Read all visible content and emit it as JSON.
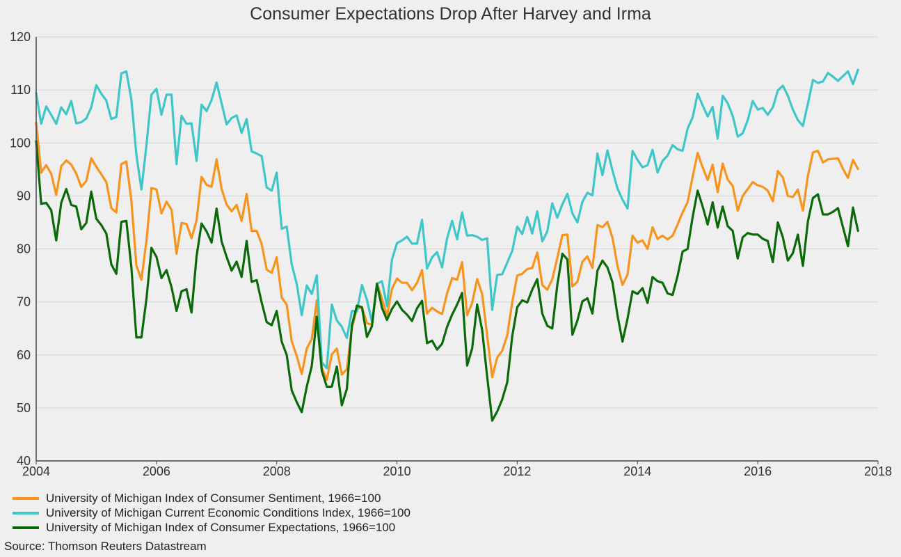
{
  "chart_data": {
    "type": "line",
    "title": "Consumer Expectations Drop After Harvey and Irma",
    "xlabel": "",
    "ylabel": "",
    "xlim": [
      2004,
      2018
    ],
    "ylim": [
      40,
      120
    ],
    "x_ticks": [
      "2004",
      "2006",
      "2008",
      "2010",
      "2012",
      "2014",
      "2016",
      "2018"
    ],
    "y_ticks": [
      "40",
      "50",
      "60",
      "70",
      "80",
      "90",
      "100",
      "110",
      "120"
    ],
    "grid": true,
    "legend_position": "bottom",
    "x_start": "2004-01",
    "x_step_months": 1,
    "series": [
      {
        "name": "University of Michigan Index of Consumer Sentiment, 1966=100",
        "color": "#f7941d",
        "values": [
          103.8,
          94.4,
          95.8,
          94.2,
          90.2,
          95.6,
          96.7,
          95.9,
          94.2,
          91.7,
          92.8,
          97.1,
          95.5,
          94.1,
          92.6,
          87.7,
          86.9,
          96.0,
          96.5,
          89.1,
          76.9,
          74.2,
          81.6,
          91.5,
          91.2,
          86.7,
          88.9,
          87.4,
          79.1,
          84.9,
          84.7,
          82.0,
          85.4,
          93.6,
          92.1,
          91.7,
          96.9,
          91.3,
          88.4,
          87.1,
          88.3,
          85.3,
          90.4,
          83.4,
          83.4,
          80.9,
          76.1,
          75.5,
          78.4,
          70.8,
          69.5,
          62.6,
          59.8,
          56.4,
          61.2,
          63.0,
          70.3,
          57.6,
          55.3,
          60.1,
          61.2,
          56.3,
          57.3,
          65.1,
          68.7,
          69.0,
          66.0,
          65.7,
          73.5,
          70.6,
          67.4,
          72.5,
          74.4,
          73.6,
          73.6,
          72.2,
          73.6,
          76.0,
          67.8,
          68.9,
          68.2,
          67.7,
          71.6,
          74.5,
          74.2,
          77.5,
          67.5,
          69.8,
          74.3,
          71.5,
          63.7,
          55.8,
          59.5,
          60.8,
          63.7,
          69.9,
          75.0,
          75.3,
          76.2,
          76.4,
          79.3,
          73.2,
          72.3,
          74.3,
          78.3,
          82.6,
          82.7,
          72.9,
          73.8,
          77.6,
          78.6,
          76.4,
          84.5,
          84.1,
          85.1,
          82.1,
          76.8,
          73.2,
          75.1,
          82.5,
          81.2,
          81.6,
          80.0,
          84.1,
          81.9,
          82.5,
          81.8,
          82.5,
          84.6,
          86.9,
          88.8,
          93.6,
          98.1,
          95.4,
          93.0,
          95.9,
          90.7,
          96.1,
          93.1,
          91.9,
          87.2,
          90.0,
          91.3,
          92.6,
          92.0,
          91.7,
          91.0,
          89.0,
          94.7,
          93.5,
          90.0,
          89.8,
          91.2,
          87.2,
          93.8,
          98.2,
          98.5,
          96.3,
          96.9,
          97.0,
          97.1,
          95.1,
          93.4,
          96.8,
          95.1
        ]
      },
      {
        "name": "University of Michigan Current Economic Conditions Index, 1966=100",
        "color": "#3ec6c8",
        "values": [
          109.4,
          103.6,
          106.9,
          105.3,
          103.6,
          106.7,
          105.4,
          107.9,
          103.7,
          103.9,
          104.6,
          106.7,
          110.9,
          109.3,
          108.0,
          104.5,
          104.9,
          113.1,
          113.5,
          108.2,
          97.8,
          91.2,
          99.6,
          109.1,
          110.2,
          105.3,
          109.1,
          109.1,
          96.0,
          105.1,
          103.6,
          103.7,
          96.6,
          107.2,
          106.0,
          108.1,
          111.4,
          107.5,
          103.5,
          104.7,
          105.2,
          101.9,
          104.5,
          98.4,
          98.0,
          97.5,
          91.6,
          91.0,
          94.4,
          83.8,
          84.2,
          77.1,
          73.4,
          67.5,
          73.1,
          71.5,
          75.0,
          58.6,
          57.5,
          69.5,
          66.5,
          65.3,
          63.2,
          68.3,
          68.2,
          73.2,
          70.4,
          66.2,
          73.4,
          73.9,
          69.2,
          78.0,
          81.1,
          81.6,
          82.3,
          81.0,
          81.0,
          85.5,
          76.3,
          78.4,
          79.4,
          76.5,
          82.0,
          85.3,
          81.8,
          86.9,
          82.5,
          82.6,
          82.3,
          81.7,
          82.0,
          68.5,
          75.1,
          75.2,
          77.4,
          79.6,
          84.2,
          82.8,
          86.0,
          82.9,
          87.1,
          81.4,
          83.3,
          88.6,
          85.9,
          88.4,
          90.4,
          86.7,
          85.0,
          88.9,
          90.6,
          90.1,
          98.0,
          93.9,
          98.6,
          94.8,
          91.4,
          89.3,
          87.6,
          98.5,
          96.8,
          95.4,
          95.8,
          98.7,
          94.4,
          96.6,
          97.6,
          99.6,
          98.8,
          98.5,
          102.7,
          104.8,
          109.3,
          107.1,
          105.0,
          106.8,
          100.8,
          108.9,
          107.5,
          105.1,
          101.2,
          101.8,
          104.3,
          107.9,
          106.3,
          106.6,
          105.3,
          106.7,
          109.9,
          110.8,
          108.9,
          106.3,
          104.3,
          103.2,
          107.4,
          111.9,
          111.3,
          111.6,
          113.2,
          112.5,
          111.7,
          112.6,
          113.5,
          111.1,
          113.8
        ]
      },
      {
        "name": "University of Michigan Index of Consumer Expectations, 1966=100",
        "color": "#0a6a0a",
        "values": [
          100.3,
          88.5,
          88.7,
          87.3,
          81.6,
          88.7,
          91.3,
          88.3,
          88.0,
          83.7,
          84.9,
          90.8,
          85.7,
          84.5,
          82.9,
          77.1,
          75.3,
          85.1,
          85.3,
          76.6,
          63.3,
          63.3,
          70.6,
          80.2,
          78.5,
          74.5,
          76.0,
          72.8,
          68.3,
          72.0,
          72.4,
          68.0,
          78.6,
          84.8,
          83.3,
          81.2,
          87.6,
          81.4,
          78.5,
          75.9,
          77.6,
          74.7,
          81.5,
          73.8,
          74.1,
          69.9,
          66.2,
          65.6,
          68.3,
          62.5,
          60.0,
          53.3,
          51.1,
          49.2,
          54.0,
          57.9,
          67.2,
          57.0,
          54.0,
          54.0,
          57.8,
          50.5,
          53.6,
          65.6,
          69.3,
          69.0,
          63.4,
          65.4,
          73.4,
          68.9,
          66.6,
          68.7,
          70.1,
          68.5,
          67.6,
          66.4,
          68.8,
          70.2,
          62.2,
          62.7,
          61.0,
          62.1,
          65.3,
          67.6,
          69.5,
          71.7,
          58.0,
          61.2,
          69.5,
          64.7,
          55.9,
          47.6,
          49.3,
          51.6,
          54.8,
          63.5,
          69.0,
          70.3,
          69.9,
          72.3,
          74.3,
          67.8,
          65.5,
          65.0,
          73.2,
          79.1,
          78.0,
          63.8,
          66.5,
          70.1,
          70.7,
          67.8,
          75.9,
          77.8,
          76.5,
          73.7,
          67.5,
          62.5,
          66.8,
          72.0,
          71.5,
          72.6,
          69.8,
          74.7,
          73.9,
          73.6,
          71.6,
          71.3,
          74.9,
          79.5,
          80.0,
          86.0,
          91.0,
          88.0,
          84.6,
          88.8,
          84.0,
          88.0,
          84.3,
          83.4,
          78.2,
          82.2,
          83.0,
          82.7,
          82.7,
          81.9,
          81.5,
          77.5,
          85.0,
          82.2,
          77.8,
          79.2,
          82.7,
          76.8,
          85.2,
          89.6,
          90.3,
          86.5,
          86.5,
          87.0,
          87.7,
          84.1,
          80.5,
          87.8,
          83.4
        ]
      }
    ]
  },
  "source_text": "Source: Thomson Reuters Datastream"
}
